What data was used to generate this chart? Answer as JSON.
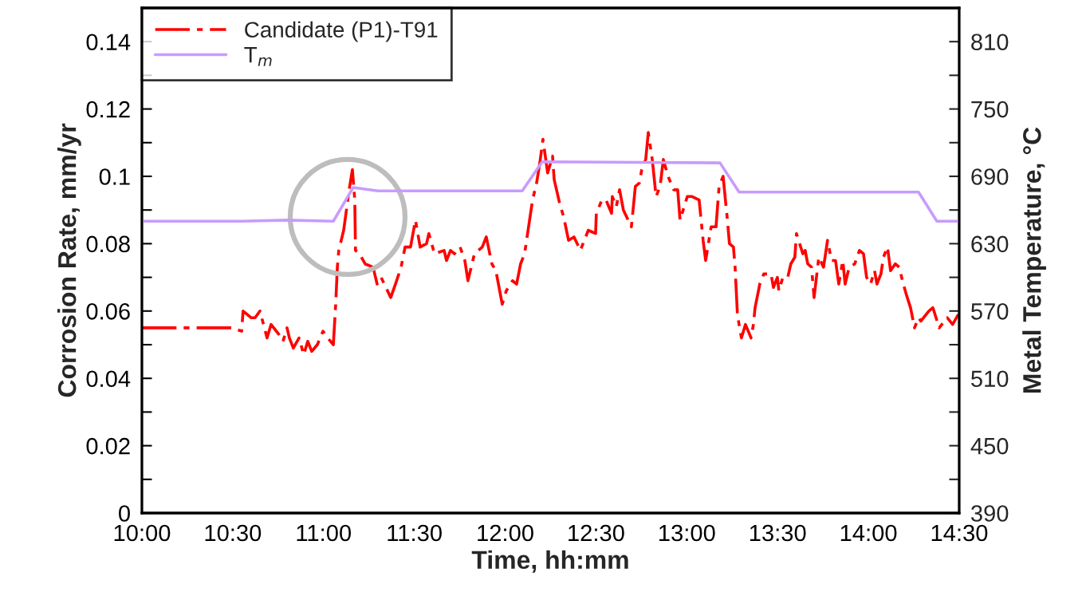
{
  "chart_data": {
    "type": "line",
    "xlabel": "Time, hh:mm",
    "ylabel": "Corrosion Rate, mm/yr",
    "y2label": "Metal Temperature, °C",
    "xlim": [
      10,
      14.5
    ],
    "xticks": [
      {
        "value": 10,
        "label": "10:00"
      },
      {
        "value": 10.5,
        "label": "10:30"
      },
      {
        "value": 11,
        "label": "11:00"
      },
      {
        "value": 11.5,
        "label": "11:30"
      },
      {
        "value": 12,
        "label": "12:00"
      },
      {
        "value": 12.5,
        "label": "12:30"
      },
      {
        "value": 13,
        "label": "13:00"
      },
      {
        "value": 13.5,
        "label": "13:30"
      },
      {
        "value": 14,
        "label": "14:00"
      },
      {
        "value": 14.5,
        "label": "14:30"
      }
    ],
    "ylim": [
      0,
      0.15
    ],
    "yticks": [
      0,
      {
        "value": 0.01,
        "label": null
      },
      0.02,
      {
        "value": 0.03,
        "label": null
      },
      0.04,
      {
        "value": 0.05,
        "label": null
      },
      0.06,
      {
        "value": 0.07,
        "label": null
      },
      0.08,
      {
        "value": 0.09,
        "label": null
      },
      0.1,
      {
        "value": 0.11,
        "label": null
      },
      0.12,
      {
        "value": 0.13,
        "label": null
      },
      0.14
    ],
    "y2lim": [
      390,
      840
    ],
    "y2ticks": [
      390,
      {
        "value": 420,
        "label": null
      },
      450,
      {
        "value": 480,
        "label": null
      },
      510,
      {
        "value": 540,
        "label": null
      },
      570,
      {
        "value": 600,
        "label": null
      },
      630,
      {
        "value": 660,
        "label": null
      },
      690,
      {
        "value": 720,
        "label": null
      },
      750,
      {
        "value": 780,
        "label": null
      },
      810
    ],
    "grid": false,
    "legend": "top left",
    "series": [
      {
        "name": "Candidate (P1)-T91",
        "color": "#ff0000",
        "line_style": "dashed",
        "x": [
          10.0,
          10.496,
          10.549,
          10.557,
          10.601,
          10.623,
          10.65,
          10.689,
          10.711,
          10.755,
          10.777,
          10.799,
          10.812,
          10.834,
          10.865,
          10.891,
          10.913,
          10.935,
          10.966,
          10.997,
          11.023,
          11.054,
          11.067,
          11.076,
          11.084,
          11.111,
          11.141,
          11.159,
          11.172,
          11.176,
          11.198,
          11.229,
          11.273,
          11.295,
          11.317,
          11.37,
          11.396,
          11.427,
          11.449,
          11.479,
          11.506,
          11.532,
          11.567,
          11.58,
          11.611,
          11.664,
          11.677,
          11.699,
          11.721,
          11.752,
          11.778,
          11.795,
          11.831,
          11.874,
          11.896,
          11.927,
          11.949,
          11.984,
          12.006,
          12.041,
          12.063,
          12.085,
          12.107,
          12.129,
          12.151,
          12.173,
          12.191,
          12.208,
          12.234,
          12.261,
          12.27,
          12.3,
          12.322,
          12.349,
          12.379,
          12.414,
          12.458,
          12.498,
          12.502,
          12.533,
          12.555,
          12.586,
          12.59,
          12.612,
          12.63,
          12.651,
          12.695,
          12.717,
          12.739,
          12.752,
          12.774,
          12.788,
          12.81,
          12.831,
          12.853,
          12.871,
          12.897,
          12.928,
          12.95,
          12.963,
          13.003,
          13.029,
          13.068,
          13.09,
          13.104,
          13.134,
          13.161,
          13.178,
          13.2,
          13.222,
          13.235,
          13.257,
          13.266,
          13.279,
          13.288,
          13.301,
          13.323,
          13.354,
          13.367,
          13.376,
          13.402,
          13.424,
          13.464,
          13.477,
          13.499,
          13.507,
          13.529,
          13.556,
          13.573,
          13.595,
          13.604,
          13.639,
          13.652,
          13.666,
          13.687,
          13.701,
          13.727,
          13.753,
          13.775,
          13.797,
          13.819,
          13.837,
          13.859,
          13.872,
          13.894,
          13.925,
          13.951,
          13.973,
          13.99,
          14.012,
          14.034,
          14.047,
          14.069,
          14.083,
          14.105,
          14.122,
          14.148,
          14.17,
          14.192,
          14.214,
          14.232,
          14.254,
          14.276,
          14.289,
          14.333,
          14.355,
          14.39,
          14.434,
          14.464,
          14.495
        ],
        "values": [
          0.055,
          0.055,
          0.054,
          0.06,
          0.058,
          0.058,
          0.06,
          0.052,
          0.056,
          0.053,
          0.051,
          0.055,
          0.052,
          0.049,
          0.052,
          0.047,
          0.051,
          0.048,
          0.05,
          0.054,
          0.052,
          0.05,
          0.062,
          0.073,
          0.078,
          0.084,
          0.096,
          0.102,
          0.093,
          0.078,
          0.077,
          0.074,
          0.073,
          0.068,
          0.07,
          0.064,
          0.068,
          0.073,
          0.079,
          0.079,
          0.087,
          0.079,
          0.08,
          0.083,
          0.077,
          0.078,
          0.075,
          0.078,
          0.077,
          0.079,
          0.075,
          0.069,
          0.077,
          0.079,
          0.082,
          0.074,
          0.072,
          0.062,
          0.066,
          0.069,
          0.068,
          0.074,
          0.077,
          0.085,
          0.093,
          0.098,
          0.104,
          0.111,
          0.101,
          0.106,
          0.099,
          0.092,
          0.088,
          0.081,
          0.082,
          0.078,
          0.084,
          0.083,
          0.089,
          0.093,
          0.093,
          0.089,
          0.094,
          0.091,
          0.096,
          0.09,
          0.085,
          0.097,
          0.098,
          0.102,
          0.105,
          0.113,
          0.105,
          0.094,
          0.097,
          0.105,
          0.1,
          0.096,
          0.096,
          0.087,
          0.094,
          0.094,
          0.093,
          0.081,
          0.075,
          0.085,
          0.085,
          0.097,
          0.1,
          0.088,
          0.08,
          0.079,
          0.073,
          0.059,
          0.056,
          0.052,
          0.056,
          0.052,
          0.056,
          0.061,
          0.068,
          0.071,
          0.071,
          0.067,
          0.07,
          0.066,
          0.07,
          0.07,
          0.074,
          0.076,
          0.083,
          0.077,
          0.078,
          0.074,
          0.073,
          0.064,
          0.076,
          0.073,
          0.081,
          0.075,
          0.075,
          0.068,
          0.075,
          0.068,
          0.073,
          0.074,
          0.078,
          0.077,
          0.07,
          0.068,
          0.072,
          0.068,
          0.071,
          0.076,
          0.079,
          0.072,
          0.074,
          0.073,
          0.068,
          0.064,
          0.061,
          0.055,
          0.058,
          0.057,
          0.06,
          0.061,
          0.055,
          0.058,
          0.056,
          0.059
        ]
      },
      {
        "name": "T$_{m}$",
        "color": "#c89bff",
        "line_style": "solid",
        "axis": "y2",
        "x": [
          10.0,
          10.549,
          10.8,
          11.054,
          11.163,
          11.3,
          12.094,
          12.204,
          13.183,
          13.288,
          14.276,
          14.377,
          14.5
        ],
        "values": [
          650,
          650,
          651,
          650,
          680,
          677,
          677,
          703,
          702,
          676,
          676,
          650,
          650
        ]
      }
    ]
  }
}
